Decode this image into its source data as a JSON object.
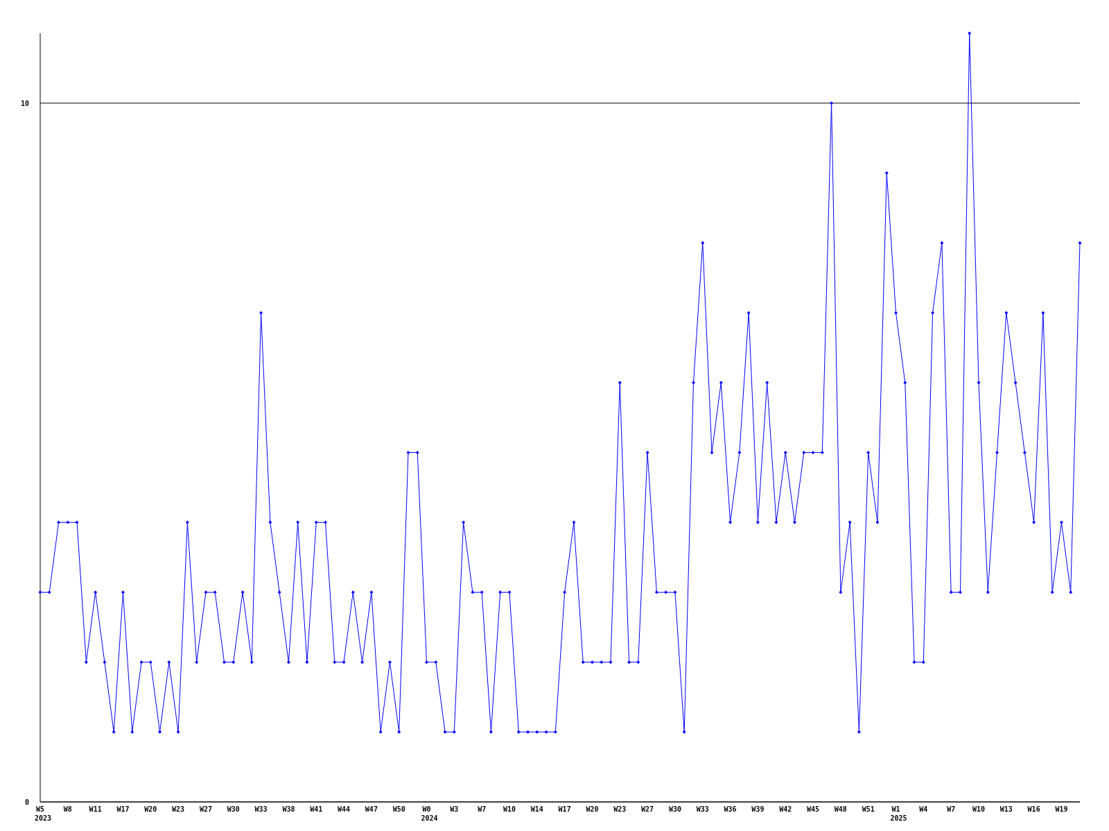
{
  "chart_data": {
    "type": "line",
    "categories": [
      "W5\n2023",
      null,
      null,
      "W8",
      null,
      null,
      "W11",
      null,
      null,
      "W17",
      null,
      null,
      "W20",
      null,
      null,
      "W23",
      null,
      null,
      "W27",
      null,
      null,
      "W30",
      null,
      null,
      "W33",
      null,
      null,
      "W38",
      null,
      null,
      "W41",
      null,
      null,
      "W44",
      null,
      null,
      "W47",
      null,
      null,
      "W50",
      null,
      null,
      "W0\n2024",
      null,
      null,
      "W3",
      null,
      null,
      "W7",
      null,
      null,
      "W10",
      null,
      null,
      "W14",
      null,
      null,
      "W17",
      null,
      null,
      "W20",
      null,
      null,
      "W23",
      null,
      null,
      "W27",
      null,
      null,
      "W30",
      null,
      null,
      "W33",
      null,
      null,
      "W36",
      null,
      null,
      "W39",
      null,
      null,
      "W42",
      null,
      null,
      "W45",
      null,
      null,
      "W48",
      null,
      null,
      "W51",
      null,
      null,
      "W1\n2025",
      null,
      null,
      "W4",
      null,
      null,
      "W7",
      null,
      null,
      "W10",
      null,
      null,
      "W13",
      null,
      null,
      "W16",
      null,
      null,
      "W19",
      null,
      null
    ],
    "series": [
      {
        "color": "#0000ff",
        "values": [
          3,
          3,
          4,
          4,
          4,
          2,
          3,
          2,
          1,
          3,
          1,
          2,
          2,
          1,
          2,
          1,
          4,
          2,
          3,
          3,
          2,
          2,
          3,
          2,
          7,
          4,
          3,
          2,
          4,
          2,
          4,
          4,
          2,
          2,
          3,
          2,
          3,
          1,
          2,
          1,
          5,
          5,
          2,
          2,
          1,
          1,
          4,
          3,
          3,
          1,
          3,
          3,
          1,
          1,
          1,
          1,
          1,
          3,
          4,
          2,
          2,
          2,
          2,
          6,
          2,
          2,
          5,
          3,
          3,
          3,
          1,
          6,
          8,
          5,
          6,
          4,
          5,
          7,
          4,
          6,
          4,
          5,
          4,
          5,
          5,
          5,
          10,
          3,
          4,
          1,
          5,
          4,
          9,
          7,
          6,
          2,
          2,
          7,
          8,
          3,
          3,
          11,
          6,
          3,
          5,
          7,
          6,
          5,
          4,
          7,
          3,
          4,
          3,
          8
        ]
      }
    ],
    "ylim": [
      0,
      11
    ],
    "yticks": [
      0,
      10
    ],
    "grid": "y",
    "marker": "diamond",
    "line_style": "solid"
  }
}
